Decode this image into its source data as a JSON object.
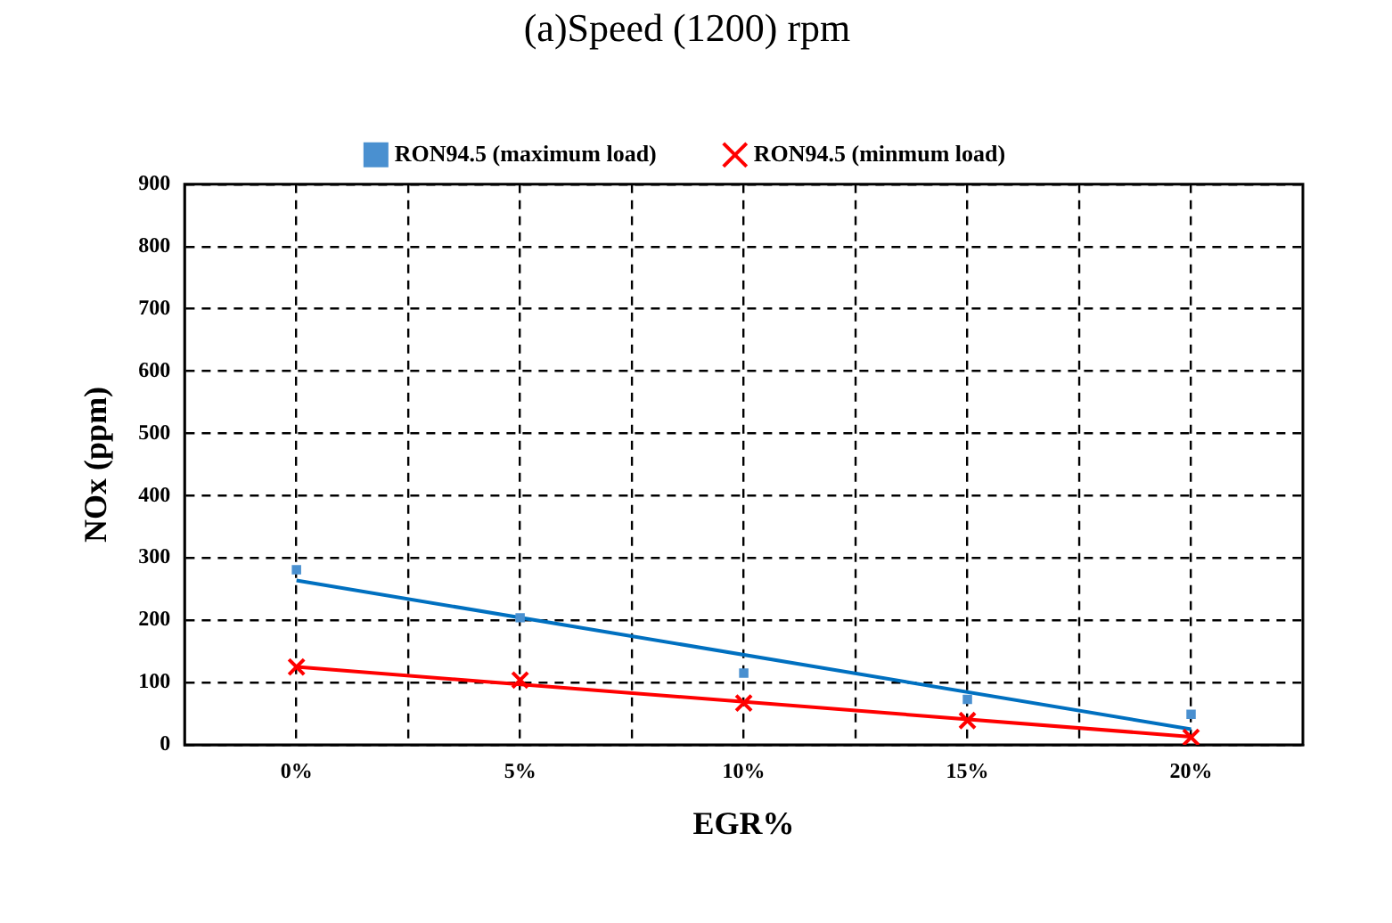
{
  "chart_data": {
    "type": "scatter",
    "title": "(a)Speed (1200) rpm",
    "xlabel": "EGR%",
    "ylabel": "NOx (ppm)",
    "categories": [
      "0%",
      "5%",
      "10%",
      "15%",
      "20%"
    ],
    "series": [
      {
        "name": "RON94.5 (maximum load)",
        "color": "#4a90d0",
        "values": [
          281,
          204,
          115,
          73,
          49
        ],
        "marker": "square"
      },
      {
        "name": "RON94.5 (minmum load)",
        "color": "#ff0000",
        "values": [
          125,
          104,
          67,
          39,
          12
        ],
        "marker": "cross"
      },
      {
        "type": "line",
        "x": [
          "0%",
          "20%"
        ],
        "color": "#0070c0",
        "values": [
          264,
          25
        ],
        "marker": "none",
        "line_style": "solid"
      },
      {
        "type": "line",
        "x": [
          "0%",
          "20%"
        ],
        "color": "#ff0000",
        "values": [
          125,
          13
        ],
        "marker": "none",
        "line_style": "solid"
      }
    ],
    "ylim": [
      0,
      900
    ],
    "yticks": [
      0,
      100,
      200,
      300,
      400,
      500,
      600,
      700,
      800,
      900
    ],
    "grid": true,
    "legend": "top"
  }
}
